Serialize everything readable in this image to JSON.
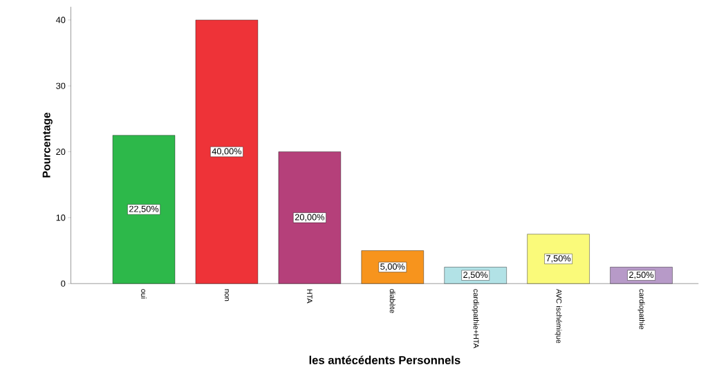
{
  "chart_data": {
    "type": "bar",
    "xlabel": "les antécédents Personnels",
    "ylabel": "Pourcentage",
    "categories": [
      "oui",
      "non",
      "HTA",
      "diabète",
      "cardiopathie+HTA",
      "AVC ischémique",
      "cardiopathie"
    ],
    "values": [
      22.5,
      40,
      20,
      5,
      2.5,
      7.5,
      2.5
    ],
    "value_labels": [
      "22,50%",
      "40,00%",
      "20,00%",
      "5,00%",
      "2,50%",
      "7,50%",
      "2,50%"
    ],
    "colors": [
      "#2db84a",
      "#ee3338",
      "#b5407a",
      "#f7941d",
      "#b2e2e6",
      "#fafa7a",
      "#b79ac8"
    ],
    "ylim": [
      0,
      42
    ],
    "yticks": [
      0,
      10,
      20,
      30,
      40
    ],
    "grid": false
  }
}
